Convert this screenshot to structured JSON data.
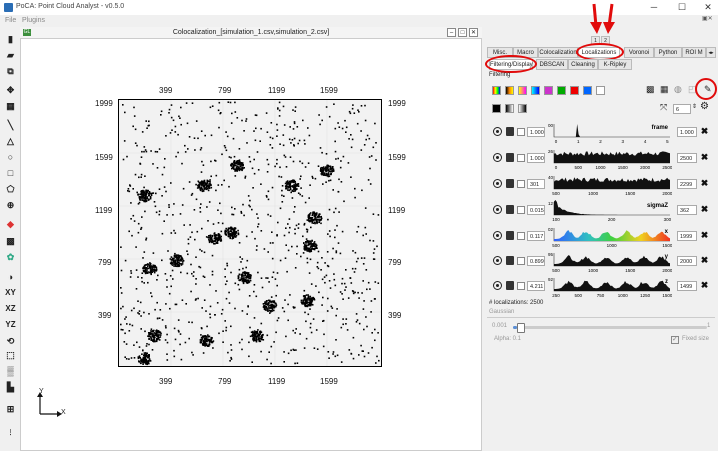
{
  "window": {
    "title": "PoCA: Point Cloud Analyst - v0.5.0"
  },
  "menu": [
    "File",
    "Plugins"
  ],
  "subwindow": {
    "title": "Colocalization_[simulation_1.csv,simulation_2.csv]",
    "icon_label": "GL"
  },
  "plot": {
    "x_ticks": [
      "399",
      "799",
      "1199",
      "1599"
    ],
    "y_ticks": [
      "1999",
      "1599",
      "1199",
      "799",
      "399"
    ],
    "axes_labels": {
      "x": "X",
      "y": "Y"
    }
  },
  "layer_buttons": [
    "1",
    "2"
  ],
  "main_tabs": [
    "Misc.",
    "Macro",
    "Colocalization",
    "Localizations",
    "Voronoi",
    "Python",
    "ROI M"
  ],
  "sub_tabs": [
    "Filtering/Display",
    "DBSCAN",
    "Cleaning",
    "K-Ripley"
  ],
  "section_label": "Filtering",
  "colors": [
    "#ffcc00",
    "#ff6600",
    "#cc33cc",
    "#3333ff",
    "#0099cc",
    "#00aa00",
    "#ff0000",
    "#0066ff",
    "#ffffff"
  ],
  "point_size": "6",
  "filters": [
    {
      "name": "frame",
      "min": "1.000",
      "max": "1.000",
      "hist_min": "0",
      "hist_max": "2500",
      "ticks": [
        "0",
        "1",
        "2",
        "3",
        "4",
        "5"
      ]
    },
    {
      "name": "",
      "min": "1.000",
      "max": "2500",
      "hist_max": "26",
      "ticks": [
        "0",
        "500",
        "1000",
        "1500",
        "2000",
        "2500"
      ]
    },
    {
      "name": "",
      "min": "301",
      "max": "2299",
      "hist_max": "40",
      "ticks": [
        "500",
        "1000",
        "1500",
        "2000"
      ]
    },
    {
      "name": "sigmaZ",
      "min": "0.015",
      "max": "362",
      "hist_max": "212",
      "ticks": [
        "100",
        "200",
        "300"
      ]
    },
    {
      "name": "x",
      "min": "0.117",
      "max": "1999",
      "hist_max": "102",
      "ticks": [
        "500",
        "1000",
        "1500"
      ]
    },
    {
      "name": "y",
      "min": "0.899",
      "max": "2000",
      "hist_max": "95",
      "ticks": [
        "500",
        "1000",
        "1500",
        "2000"
      ]
    },
    {
      "name": "z",
      "min": "4.211",
      "max": "1499",
      "hist_max": "92",
      "ticks": [
        "250",
        "500",
        "750",
        "1000",
        "1250",
        "1500"
      ]
    }
  ],
  "localizations_text": "# localizations: 2500",
  "gaussian_label": "Gaussian",
  "alpha": {
    "min": "0.001",
    "max": "1",
    "label": "Alpha: 0.1",
    "value": 0.1
  },
  "fixed_size_label": "Fixed size",
  "toolbar_labels": {
    "xy": "XY",
    "xz": "XZ",
    "yz": "YZ"
  }
}
